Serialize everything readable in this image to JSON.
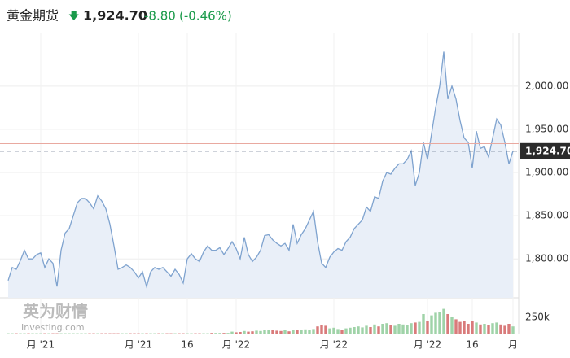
{
  "header": {
    "title": "黄金期货",
    "arrow": "🡇",
    "change": "-8.80",
    "change_pct": "(-0.46%)"
  },
  "watermark": {
    "name": "英为财情",
    "site": "Investing.com"
  },
  "chart_data": {
    "type": "area",
    "categories": [
      null,
      null,
      null,
      null,
      null,
      null,
      null,
      null,
      "月 '21",
      null,
      null,
      null,
      null,
      null,
      null,
      null,
      null,
      null,
      null,
      null,
      null,
      null,
      null,
      null,
      null,
      null,
      null,
      null,
      null,
      null,
      null,
      null,
      "月 '21",
      null,
      null,
      null,
      null,
      null,
      null,
      null,
      null,
      null,
      null,
      null,
      "16",
      null,
      null,
      null,
      null,
      null,
      null,
      null,
      null,
      null,
      null,
      null,
      "月 '22",
      null,
      null,
      null,
      null,
      null,
      null,
      null,
      null,
      null,
      null,
      null,
      null,
      null,
      null,
      null,
      null,
      null,
      null,
      null,
      null,
      null,
      null,
      null,
      "月 '22",
      null,
      null,
      null,
      null,
      null,
      null,
      null,
      null,
      null,
      null,
      null,
      null,
      null,
      null,
      null,
      null,
      null,
      null,
      null,
      null,
      null,
      null,
      "月 '22",
      null,
      null,
      null,
      null,
      null,
      null,
      null,
      null,
      null,
      null,
      "16",
      null,
      null,
      null,
      null,
      null,
      null,
      null,
      null,
      null,
      "月"
    ],
    "values": [
      1775,
      1790,
      1788,
      1798,
      1810,
      1800,
      1800,
      1805,
      1807,
      1790,
      1800,
      1795,
      1768,
      1810,
      1830,
      1835,
      1850,
      1865,
      1870,
      1870,
      1865,
      1858,
      1873,
      1867,
      1858,
      1840,
      1815,
      1788,
      1790,
      1793,
      1790,
      1785,
      1778,
      1785,
      1768,
      1785,
      1790,
      1788,
      1790,
      1785,
      1780,
      1788,
      1782,
      1772,
      1800,
      1806,
      1800,
      1797,
      1808,
      1815,
      1810,
      1810,
      1813,
      1805,
      1812,
      1820,
      1812,
      1800,
      1825,
      1805,
      1797,
      1802,
      1810,
      1827,
      1828,
      1822,
      1818,
      1815,
      1818,
      1810,
      1840,
      1818,
      1828,
      1835,
      1845,
      1855,
      1820,
      1795,
      1790,
      1802,
      1808,
      1812,
      1810,
      1820,
      1825,
      1835,
      1840,
      1845,
      1860,
      1855,
      1872,
      1870,
      1890,
      1900,
      1898,
      1905,
      1910,
      1910,
      1915,
      1925,
      1885,
      1900,
      1935,
      1915,
      1945,
      1975,
      2000,
      2040,
      1985,
      2000,
      1985,
      1960,
      1940,
      1935,
      1905,
      1948,
      1928,
      1930,
      1918,
      1940,
      1962,
      1955,
      1935,
      1910,
      1925
    ],
    "color": "#7fa3cf",
    "fill": "#e9eff8",
    "ylim": [
      1755,
      2062
    ],
    "yticks": [
      {
        "value": 1800,
        "label": "1,800.00"
      },
      {
        "value": 1850,
        "label": "1,850.00"
      },
      {
        "value": 1900,
        "label": "1,900.00"
      },
      {
        "value": 1950,
        "label": "1,950.00"
      },
      {
        "value": 2000,
        "label": "2,000.00"
      }
    ],
    "grid": true,
    "last_price": {
      "value": 1924.7,
      "label": "1,924.70"
    },
    "prev_close": 1933.5,
    "volume": {
      "up_color": "#9fd3a8",
      "down_color": "#d97b7b",
      "ylim": [
        0,
        525000
      ],
      "yticks": [
        {
          "value": 250000,
          "label": "250k"
        }
      ],
      "values": [
        5000,
        5000,
        5000,
        5000,
        5000,
        5000,
        5000,
        5000,
        5000,
        5000,
        5000,
        5000,
        5000,
        5000,
        5000,
        5000,
        5000,
        5000,
        5000,
        5000,
        5000,
        5000,
        5000,
        5000,
        5000,
        5000,
        5000,
        5000,
        5000,
        5000,
        5000,
        5000,
        5000,
        5000,
        5000,
        5000,
        5000,
        5000,
        5000,
        5000,
        5000,
        5000,
        5000,
        5000,
        5000,
        5000,
        5000,
        5000,
        5000,
        5000,
        10000,
        10000,
        10000,
        10000,
        10000,
        30000,
        20000,
        25000,
        40000,
        30000,
        35000,
        45000,
        40000,
        60000,
        50000,
        55000,
        45000,
        40000,
        50000,
        35000,
        60000,
        55000,
        50000,
        65000,
        60000,
        70000,
        110000,
        130000,
        120000,
        80000,
        90000,
        70000,
        60000,
        80000,
        90000,
        100000,
        110000,
        95000,
        120000,
        100000,
        140000,
        110000,
        150000,
        160000,
        130000,
        120000,
        150000,
        140000,
        130000,
        160000,
        170000,
        180000,
        300000,
        200000,
        280000,
        320000,
        330000,
        380000,
        300000,
        250000,
        220000,
        180000,
        200000,
        150000,
        190000,
        170000,
        140000,
        150000,
        130000,
        160000,
        170000,
        140000,
        120000,
        150000,
        110000
      ]
    }
  }
}
